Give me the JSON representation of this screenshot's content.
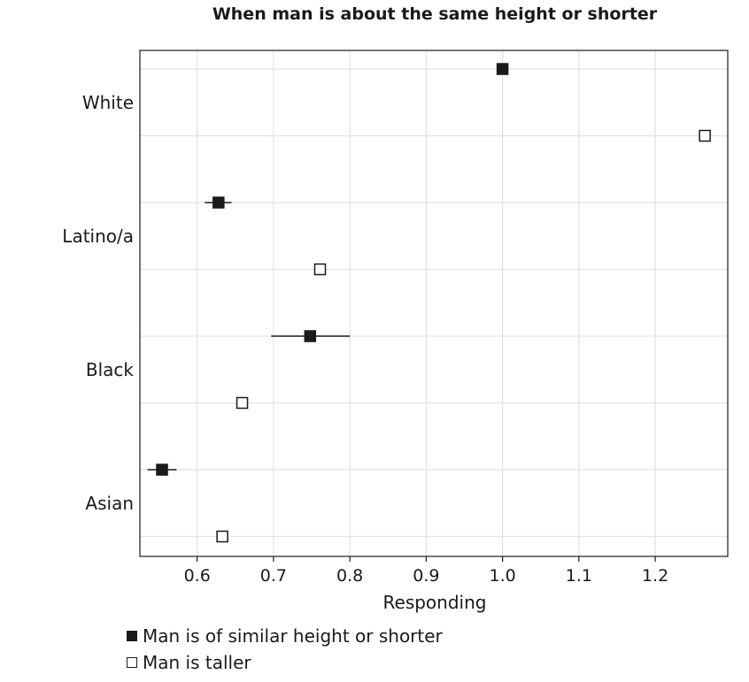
{
  "chart_data": {
    "type": "scatter",
    "title": "When man is about the same height or shorter",
    "xlabel": "Responding",
    "ylabel": "",
    "xlim": [
      0.525,
      1.295
    ],
    "x_ticks": [
      0.6,
      0.7,
      0.8,
      0.9,
      1.0,
      1.1,
      1.2
    ],
    "x_tick_labels": [
      "0.6",
      "0.7",
      "0.8",
      "0.9",
      "1.0",
      "1.1",
      "1.2"
    ],
    "categories": [
      "White",
      "Latino/a",
      "Black",
      "Asian"
    ],
    "grid": true,
    "legend_position": "bottom-left",
    "series": [
      {
        "name": "Man is of similar height or shorter",
        "marker": "filled-square",
        "values": [
          1.0,
          0.628,
          0.748,
          0.554
        ],
        "ci_low": [
          1.0,
          0.61,
          0.697,
          0.535
        ],
        "ci_high": [
          1.0,
          0.645,
          0.8,
          0.573
        ]
      },
      {
        "name": "Man is taller",
        "marker": "open-square",
        "values": [
          1.265,
          0.761,
          0.659,
          0.633
        ],
        "ci_low": [
          1.265,
          0.761,
          0.659,
          0.633
        ],
        "ci_high": [
          1.265,
          0.761,
          0.659,
          0.633
        ]
      }
    ],
    "colors": {
      "ink": "#1a1a1a",
      "grid": "#e3e3e3",
      "background": "#ffffff"
    }
  }
}
